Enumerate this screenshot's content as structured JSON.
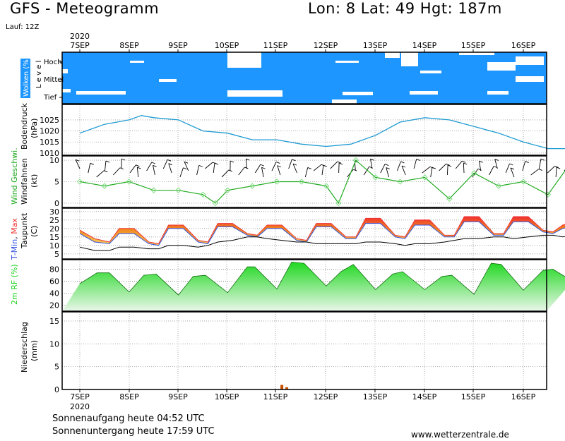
{
  "header": {
    "title": "GFS - Meteogramm",
    "location": "Lon: 8  Lat: 49  Hgt: 187m",
    "run": "Lauf: 12Z"
  },
  "footer": {
    "sunrise": "Sonnenaufgang heute 04:52 UTC",
    "sunset": "Sonnenuntergang heute 17:59 UTC",
    "source": "www.wetterzentrale.de"
  },
  "dates": {
    "year": "2020",
    "days": [
      "7SEP",
      "8SEP",
      "9SEP",
      "10SEP",
      "11SEP",
      "12SEP",
      "13SEP",
      "14SEP",
      "15SEP",
      "16SEP"
    ]
  },
  "colors": {
    "cloud": "#1e96ff",
    "pressure": "#1e9ad2",
    "wind": "#22aa22",
    "windMarker": "#7fdd7f",
    "tmax": "#f03030",
    "tmin": "#3050e0",
    "humidity": "#1fd21f",
    "precip": "#c85000"
  },
  "chart_data": [
    {
      "type": "heatmap",
      "name": "clouds",
      "ylabel": "Wolken (%)",
      "ylabel_sub": "L e v e l",
      "levels": [
        "Hoch",
        "Mittel",
        "Tief"
      ],
      "note": "mostly overcast at all levels"
    },
    {
      "type": "line",
      "name": "pressure",
      "ylabel": "Bodendruck (hPa)",
      "yticks": [
        1010,
        1015,
        1020,
        1025
      ],
      "ylim": [
        1009,
        1032
      ],
      "x": [
        0,
        0.5,
        1,
        1.25,
        1.5,
        2,
        2.5,
        3,
        3.5,
        4,
        4.5,
        5,
        5.5,
        6,
        6.5,
        7,
        7.5,
        8,
        8.5,
        9,
        9.5,
        10
      ],
      "values": [
        1019,
        1023,
        1025,
        1027,
        1026,
        1025,
        1020,
        1019,
        1016,
        1016,
        1014,
        1013,
        1014,
        1018,
        1024,
        1026,
        1025,
        1022,
        1019,
        1015,
        1012,
        1012
      ]
    },
    {
      "type": "line",
      "name": "wind",
      "ylabel": "Wind Geschwi.",
      "ylabel2": "Windfahnen (kt)",
      "yticks": [
        0,
        5,
        10
      ],
      "ylim": [
        -1,
        11
      ],
      "x": [
        0,
        0.5,
        1,
        1.5,
        2,
        2.5,
        2.75,
        3,
        3.5,
        4,
        4.5,
        5,
        5.25,
        5.6,
        6,
        6.5,
        7,
        7.5,
        8,
        8.5,
        9,
        9.5,
        10
      ],
      "values": [
        5,
        4,
        5,
        3,
        3,
        2,
        0,
        3,
        4,
        5,
        5,
        4,
        0,
        10,
        6,
        5,
        6,
        1,
        7,
        4,
        5,
        2,
        10
      ]
    },
    {
      "type": "area",
      "name": "temperature",
      "ylabel": "T-Min, Max",
      "ylabel2": "Taupunkt (C)",
      "yticks": [
        5,
        10,
        15,
        20,
        25,
        30
      ],
      "ylim": [
        2,
        32
      ],
      "x": [
        0,
        0.3,
        0.6,
        0.8,
        1.1,
        1.4,
        1.6,
        1.8,
        2.1,
        2.4,
        2.6,
        2.8,
        3.1,
        3.4,
        3.6,
        3.8,
        4.1,
        4.4,
        4.6,
        4.8,
        5.1,
        5.4,
        5.6,
        5.8,
        6.1,
        6.4,
        6.6,
        6.8,
        7.1,
        7.4,
        7.6,
        7.8,
        8.1,
        8.4,
        8.6,
        8.8,
        9.1,
        9.4,
        9.6,
        9.8,
        10
      ],
      "series": [
        {
          "name": "T-Max",
          "values": [
            19,
            14,
            12,
            20,
            20,
            12,
            11,
            22,
            22,
            13,
            12,
            23,
            23,
            17,
            16,
            22,
            22,
            14,
            13,
            23,
            23,
            15,
            15,
            26,
            26,
            16,
            15,
            25,
            25,
            16,
            16,
            27,
            27,
            17,
            17,
            27,
            27,
            19,
            18,
            22,
            24
          ]
        },
        {
          "name": "T-Min",
          "values": [
            17,
            12,
            11,
            17,
            17,
            11,
            10,
            20,
            20,
            12,
            11,
            21,
            21,
            16,
            15,
            20,
            20,
            13,
            12,
            21,
            21,
            14,
            14,
            23,
            23,
            15,
            14,
            22,
            22,
            15,
            15,
            24,
            24,
            16,
            16,
            24,
            24,
            18,
            17,
            20,
            21
          ]
        },
        {
          "name": "Taupunkt",
          "values": [
            9,
            7,
            7,
            9,
            9,
            8,
            8,
            10,
            10,
            9,
            10,
            12,
            13,
            15,
            15,
            14,
            13,
            12,
            12,
            11,
            11,
            11,
            11,
            12,
            12,
            11,
            10,
            11,
            11,
            12,
            13,
            14,
            14,
            15,
            15,
            14,
            15,
            16,
            16,
            15,
            16
          ]
        }
      ]
    },
    {
      "type": "area",
      "name": "humidity",
      "ylabel": "2m RF (%)",
      "yticks": [
        20,
        40,
        60,
        80
      ],
      "ylim": [
        10,
        96
      ],
      "x": [
        0,
        0.35,
        0.6,
        1.0,
        1.3,
        1.55,
        2.0,
        2.3,
        2.55,
        3.0,
        3.4,
        3.55,
        4.0,
        4.3,
        4.55,
        5.0,
        5.3,
        5.55,
        6.0,
        6.35,
        6.55,
        7.0,
        7.35,
        7.55,
        8.0,
        8.35,
        8.55,
        9.0,
        9.4,
        9.6,
        10
      ],
      "values": [
        56,
        74,
        74,
        42,
        70,
        72,
        37,
        68,
        70,
        41,
        84,
        84,
        47,
        92,
        90,
        52,
        76,
        88,
        46,
        72,
        76,
        46,
        68,
        70,
        38,
        90,
        88,
        45,
        78,
        80,
        60
      ]
    },
    {
      "type": "bar",
      "name": "precipitation",
      "ylabel": "Niederschlag (mm)",
      "yticks": [
        0,
        5,
        10,
        15
      ],
      "ylim": [
        0,
        17
      ],
      "x": [
        4.1,
        4.2
      ],
      "values": [
        1.0,
        0.5
      ]
    }
  ]
}
